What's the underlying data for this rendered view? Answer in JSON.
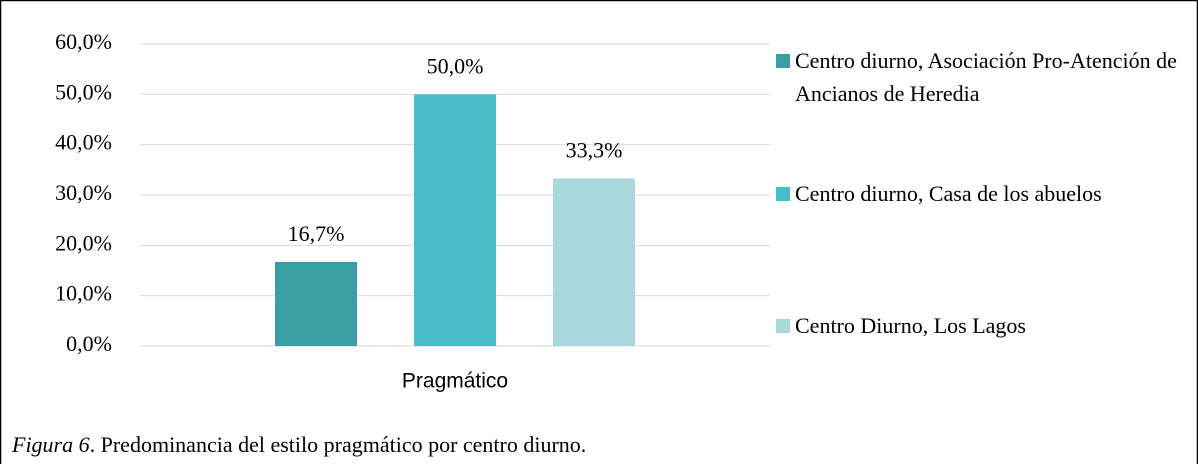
{
  "chart_data": {
    "type": "bar",
    "categories": [
      "Pragmático"
    ],
    "series": [
      {
        "name": "Centro diurno, Asociación Pro-Atención de Ancianos de Heredia",
        "color": "#3a9fa4",
        "values": [
          16.7
        ],
        "value_labels": [
          "16,7%"
        ]
      },
      {
        "name": "Centro diurno, Casa de los abuelos",
        "color": "#48bec8",
        "values": [
          50.0
        ],
        "value_labels": [
          "50,0%"
        ]
      },
      {
        "name": "Centro Diurno, Los Lagos",
        "color": "#a8d8dc",
        "values": [
          33.3
        ],
        "value_labels": [
          "33,3%"
        ]
      }
    ],
    "ylim": [
      0,
      60
    ],
    "yticks": [
      {
        "value": 0,
        "label": "0,0%"
      },
      {
        "value": 10,
        "label": "10,0%"
      },
      {
        "value": 20,
        "label": "20,0%"
      },
      {
        "value": 30,
        "label": "30,0%"
      },
      {
        "value": 40,
        "label": "40,0%"
      },
      {
        "value": 50,
        "label": "50,0%"
      },
      {
        "value": 60,
        "label": "60,0%"
      }
    ],
    "grid": true,
    "legend": "right",
    "caption_label": "Figura 6",
    "caption": ". Predominancia del estilo pragmático por centro diurno."
  }
}
